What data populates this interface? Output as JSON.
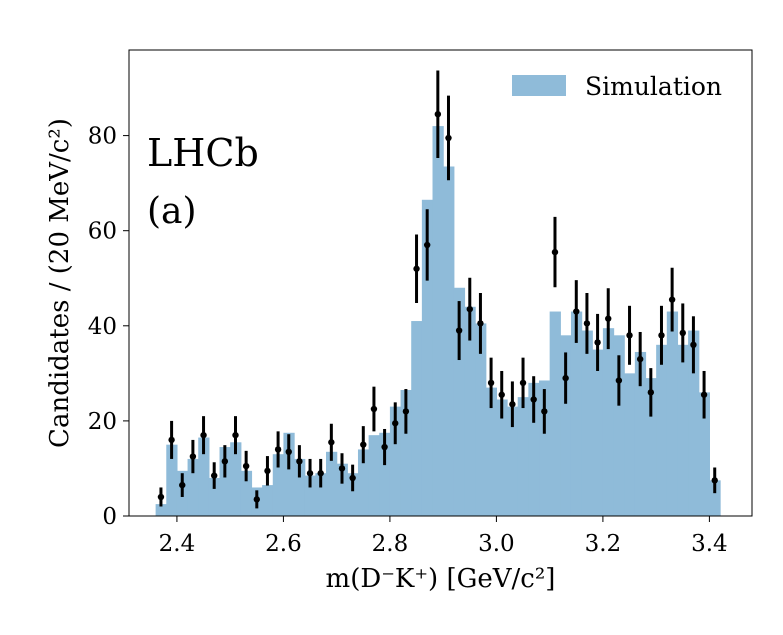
{
  "chart_data": {
    "type": "bar",
    "experiment_label": "LHCb",
    "panel_label": "(a)",
    "xlabel": "m(D⁻K⁺) [GeV/c²]",
    "ylabel": "Candidates / (20 MeV/c²)",
    "xlim": [
      2.31,
      3.48
    ],
    "ylim": [
      0,
      98
    ],
    "grid": false,
    "legend_position": "top-right",
    "x_ticks": [
      "2.4",
      "2.6",
      "2.8",
      "3.0",
      "3.2",
      "3.4"
    ],
    "y_ticks": [
      "0",
      "20",
      "40",
      "60",
      "80"
    ],
    "bin_width": 0.02,
    "bin_centers": [
      2.37,
      2.39,
      2.41,
      2.43,
      2.45,
      2.47,
      2.49,
      2.51,
      2.53,
      2.55,
      2.57,
      2.59,
      2.61,
      2.63,
      2.65,
      2.67,
      2.69,
      2.71,
      2.73,
      2.75,
      2.77,
      2.79,
      2.81,
      2.83,
      2.85,
      2.87,
      2.89,
      2.91,
      2.93,
      2.95,
      2.97,
      2.99,
      3.01,
      3.03,
      3.05,
      3.07,
      3.09,
      3.11,
      3.13,
      3.15,
      3.17,
      3.19,
      3.21,
      3.23,
      3.25,
      3.27,
      3.29,
      3.31,
      3.33,
      3.35,
      3.37,
      3.39,
      3.41
    ],
    "series": [
      {
        "name": "Simulation",
        "kind": "histogram",
        "color": "#8fbbd9",
        "values": [
          2.5,
          15,
          9.5,
          12,
          16.5,
          8,
          14.5,
          15.5,
          9.5,
          6,
          6.5,
          13,
          17.5,
          12,
          8.5,
          9,
          13.5,
          11,
          9,
          14,
          17,
          17.5,
          23,
          26.5,
          41,
          66.5,
          82,
          73.5,
          48,
          44,
          40.5,
          27,
          24.5,
          23,
          25,
          28,
          28.5,
          43,
          38,
          43,
          39,
          35,
          39.5,
          38,
          30,
          34.5,
          29,
          36,
          43,
          36,
          39,
          26,
          7.5
        ]
      },
      {
        "kind": "data_points_with_errors",
        "color": "#000000",
        "values": [
          4,
          16,
          6.5,
          12.5,
          17,
          8.5,
          11.5,
          17,
          10.5,
          3.5,
          9.5,
          14,
          13.5,
          11.5,
          9,
          9,
          15.5,
          10,
          8,
          15,
          22.5,
          14.5,
          19.5,
          22,
          52,
          57,
          84.5,
          79.5,
          39,
          43.5,
          40.5,
          28,
          25.5,
          23.5,
          28,
          24.5,
          22,
          55.5,
          29,
          43,
          40.5,
          36.5,
          41.5,
          28.5,
          38,
          33,
          26,
          38,
          45.5,
          38.5,
          36,
          25.5,
          7.5
        ],
        "errors": [
          2,
          4,
          2.5,
          3.5,
          4,
          2.8,
          3.4,
          4,
          3.2,
          1.9,
          3.1,
          3.8,
          3.7,
          3.4,
          3,
          3,
          3.9,
          3.2,
          2.8,
          3.9,
          4.7,
          3.8,
          4.4,
          4.7,
          7.2,
          7.5,
          9.2,
          8.9,
          6.2,
          6.6,
          6.4,
          5.3,
          5,
          4.8,
          5.3,
          4.9,
          4.7,
          7.4,
          5.4,
          6.6,
          6.4,
          6,
          6.4,
          5.3,
          6.2,
          5.7,
          5.1,
          6.2,
          6.7,
          6.2,
          6,
          5,
          2.7
        ]
      }
    ]
  }
}
